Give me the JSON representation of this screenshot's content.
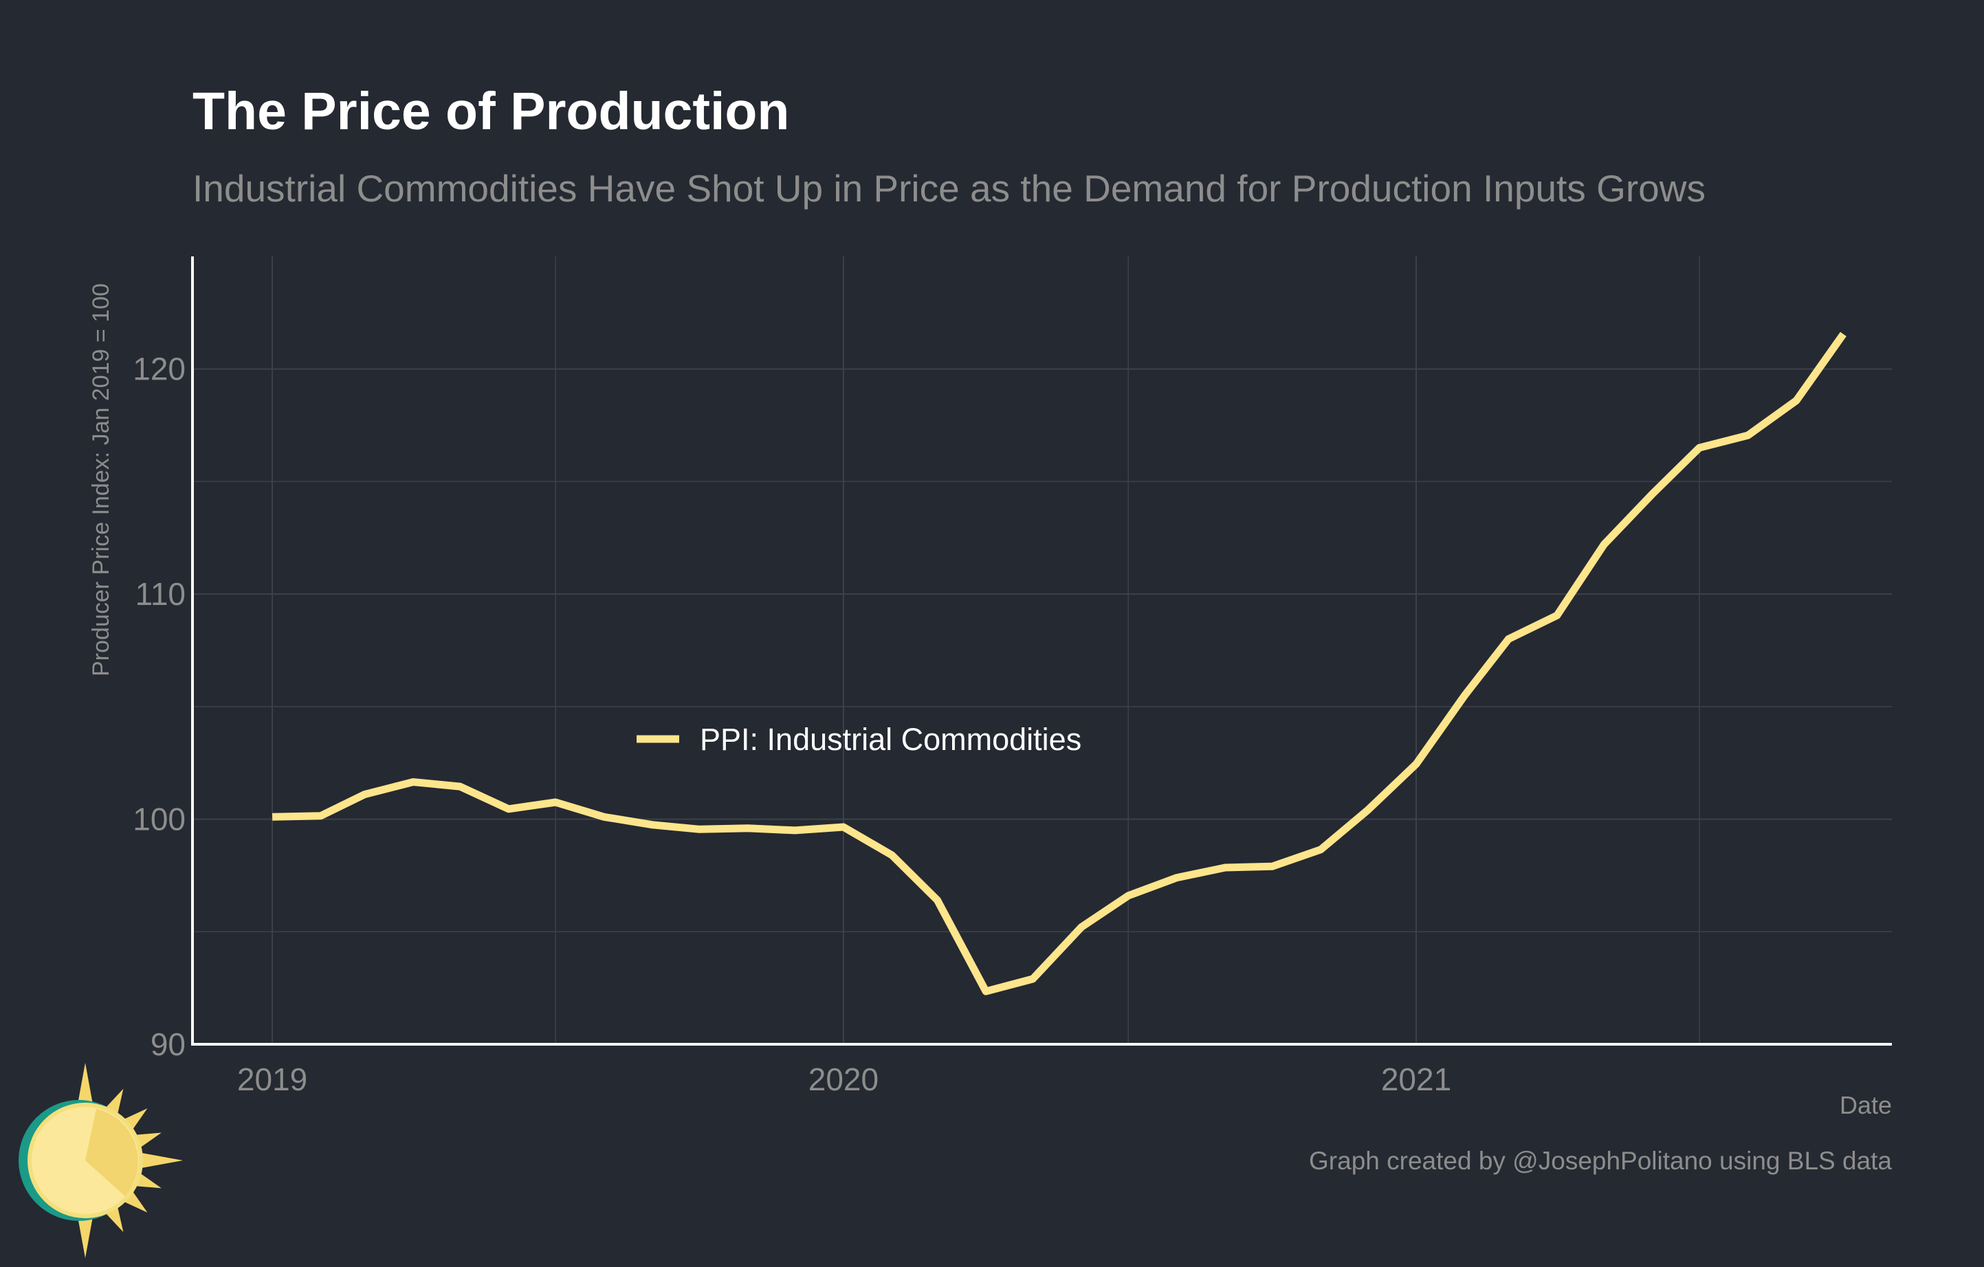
{
  "colors": {
    "background": "#252931",
    "line": "#fde58c",
    "grid": "#3d414a",
    "axis": "#ffffff",
    "title": "#ffffff",
    "muted": "#8d8d8d"
  },
  "header": {
    "title": "The Price of Production",
    "subtitle": "Industrial Commodities Have Shot Up in Price as the Demand for Production Inputs Grows"
  },
  "footer": {
    "credit": "Graph created by @JosephPolitano using BLS data"
  },
  "chart_data": {
    "type": "line",
    "title": "The Price of Production",
    "subtitle": "Industrial Commodities Have Shot Up in Price as the Demand for Production Inputs Grows",
    "xlabel": "Date",
    "ylabel": "Producer Price Index: Jan 2019 = 100",
    "xlim": [
      "2018-11-11",
      "2021-11-01"
    ],
    "ylim": [
      90,
      125
    ],
    "x_ticks": [
      "2019-01-01",
      "2020-01-01",
      "2021-01-01"
    ],
    "x_tick_labels": [
      "2019",
      "2020",
      "2021"
    ],
    "x_minor_ticks": [
      "2019-07-01",
      "2020-07-01",
      "2021-07-01"
    ],
    "y_ticks": [
      90,
      100,
      110,
      120
    ],
    "y_minor_ticks": [
      95,
      105,
      115
    ],
    "grid": true,
    "legend_position": "center-left",
    "series": [
      {
        "name": "PPI: Industrial Commodities",
        "color": "#fde58c",
        "x": [
          "2019-01-01",
          "2019-02-01",
          "2019-03-01",
          "2019-04-01",
          "2019-05-01",
          "2019-06-01",
          "2019-07-01",
          "2019-08-01",
          "2019-09-01",
          "2019-10-01",
          "2019-11-01",
          "2019-12-01",
          "2020-01-01",
          "2020-02-01",
          "2020-03-01",
          "2020-04-01",
          "2020-05-01",
          "2020-06-01",
          "2020-07-01",
          "2020-08-01",
          "2020-09-01",
          "2020-10-01",
          "2020-11-01",
          "2020-12-01",
          "2021-01-01",
          "2021-02-01",
          "2021-03-01",
          "2021-04-01",
          "2021-05-01",
          "2021-06-01",
          "2021-07-01",
          "2021-08-01",
          "2021-09-01",
          "2021-10-01"
        ],
        "values": [
          100.1,
          100.15,
          101.1,
          101.65,
          101.45,
          100.45,
          100.75,
          100.1,
          99.75,
          99.55,
          99.6,
          99.5,
          99.65,
          98.4,
          96.4,
          92.35,
          92.9,
          95.2,
          96.6,
          97.4,
          97.85,
          97.9,
          98.65,
          100.4,
          102.45,
          105.5,
          108.0,
          109.05,
          112.2,
          114.45,
          116.5,
          117.05,
          118.6,
          121.55
        ]
      }
    ]
  }
}
